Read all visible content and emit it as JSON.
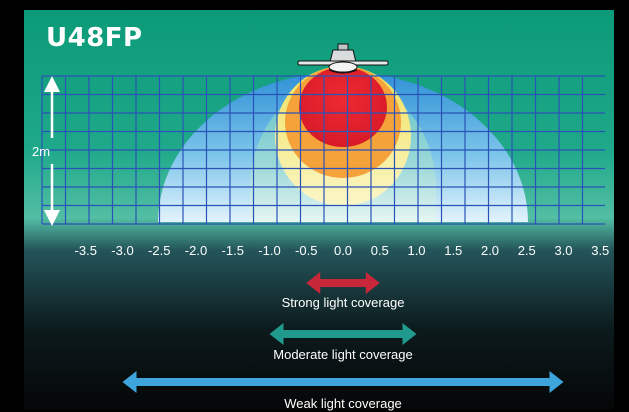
{
  "title": "U48FP",
  "height_label": "2m",
  "x_ticks": [
    "-3.5",
    "-3.0",
    "-2.5",
    "-2.0",
    "-1.5",
    "-1.0",
    "-0.5",
    "0.0",
    "0.5",
    "1.0",
    "1.5",
    "2.0",
    "2.5",
    "3.0",
    "3.5"
  ],
  "coverage": [
    {
      "label": "Strong light coverage",
      "from": -0.5,
      "to": 0.5,
      "color": "#c8273a"
    },
    {
      "label": "Moderate light coverage",
      "from": -1.0,
      "to": 1.0,
      "color": "#1f9a8c"
    },
    {
      "label": "Weak light coverage",
      "from": -3.0,
      "to": 3.0,
      "color": "#3ea4dc"
    }
  ],
  "colors": {
    "background_top": "#0a9a78",
    "grid": "#2a53b8",
    "zone_weak": "#4aa8dd",
    "zone_moderate": "#f3e97a",
    "zone_strong": "#e01f2e"
  },
  "icons": {
    "fixture": "ceiling-fan-light-icon"
  }
}
